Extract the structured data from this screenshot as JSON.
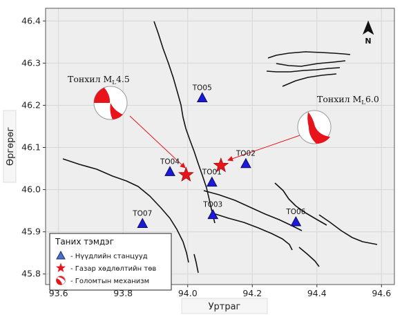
{
  "chart_data": {
    "type": "map",
    "xlabel": "Уртраг",
    "ylabel": "Өргөрөг",
    "xlim": [
      93.56,
      94.64
    ],
    "ylim": [
      45.775,
      46.43
    ],
    "x_ticks": [
      93.6,
      93.8,
      94.0,
      94.2,
      94.4,
      94.6
    ],
    "y_ticks": [
      45.8,
      45.9,
      46.0,
      46.1,
      46.2,
      46.3,
      46.4
    ],
    "x_tick_labels": [
      "93.6",
      "93.8",
      "94.0",
      "94.2",
      "94.4",
      "94.6"
    ],
    "y_tick_labels": [
      "45.8",
      "45.9",
      "46.0",
      "46.1",
      "46.2",
      "46.3",
      "46.4"
    ],
    "grid": true,
    "stations": [
      {
        "name": "TO05",
        "lon": 94.045,
        "lat": 46.218
      },
      {
        "name": "TO04",
        "lon": 93.945,
        "lat": 46.043
      },
      {
        "name": "TO01",
        "lon": 94.075,
        "lat": 46.018
      },
      {
        "name": "TO02",
        "lon": 94.18,
        "lat": 46.062
      },
      {
        "name": "TO03",
        "lon": 94.078,
        "lat": 45.941
      },
      {
        "name": "TO07",
        "lon": 93.86,
        "lat": 45.92
      },
      {
        "name": "TO06",
        "lon": 94.335,
        "lat": 45.924
      }
    ],
    "epicenters": [
      {
        "lon": 93.995,
        "lat": 46.035
      },
      {
        "lon": 94.103,
        "lat": 46.057
      }
    ],
    "annotations": [
      {
        "label": "Тонхил",
        "magnitude": "4.5"
      },
      {
        "label": "Тонхил",
        "magnitude": "6.0"
      }
    ],
    "colors": {
      "station": "#1a1adc",
      "epicenter": "#e8141c",
      "mechanism": "#e8141c",
      "fault": "#111111",
      "arrow": "#e8141c",
      "grid": "#d6d6d6",
      "plot_bg": "#eeeeee"
    },
    "legend": {
      "placement": "bottom-left",
      "title": "Таних тэмдэг",
      "items": [
        {
          "symbol": "triangle",
          "text": "- Нүүдлийн станцууд"
        },
        {
          "symbol": "star",
          "text": "- Газар хөдлөлтийн төв"
        },
        {
          "symbol": "mechanism",
          "text": "- Голомтын механизм"
        }
      ]
    },
    "north_arrow": {
      "label": "N",
      "placement": "top-right"
    }
  }
}
